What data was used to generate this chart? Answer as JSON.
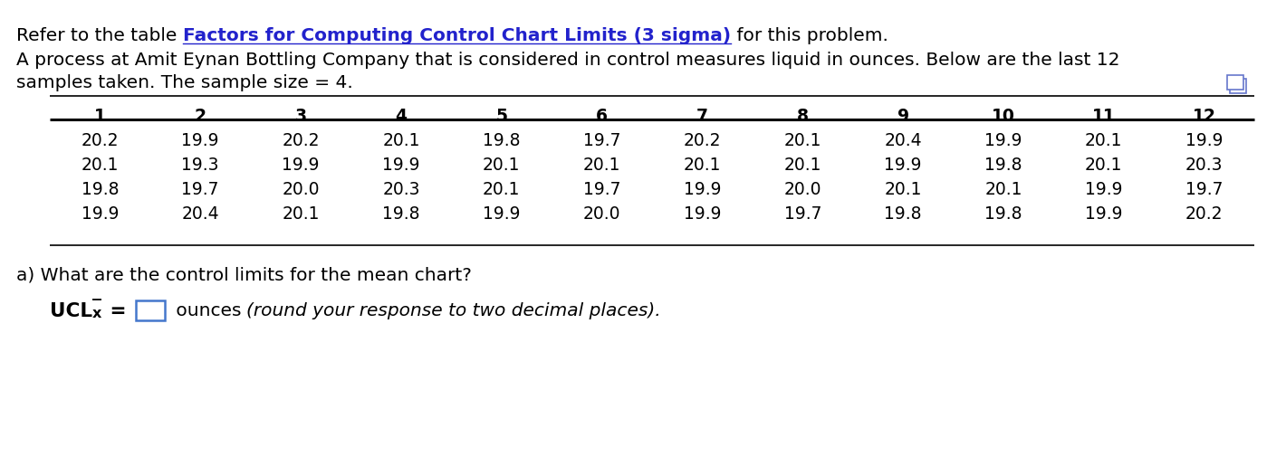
{
  "line1_pre": "Refer to the table ",
  "link_text": "Factors for Computing Control Chart Limits (3 sigma)",
  "line1_post": " for this problem.",
  "line2": "A process at Amit Eynan Bottling Company that is considered in control measures liquid in ounces. Below are the last 12",
  "line3": "samples taken. The sample size = 4.",
  "col_headers": [
    "1",
    "2",
    "3",
    "4",
    "5",
    "6",
    "7",
    "8",
    "9",
    "10",
    "11",
    "12"
  ],
  "table_data": [
    [
      "20.2",
      "19.9",
      "20.2",
      "20.1",
      "19.8",
      "19.7",
      "20.2",
      "20.1",
      "20.4",
      "19.9",
      "20.1",
      "19.9"
    ],
    [
      "20.1",
      "19.3",
      "19.9",
      "19.9",
      "20.1",
      "20.1",
      "20.1",
      "20.1",
      "19.9",
      "19.8",
      "20.1",
      "20.3"
    ],
    [
      "19.8",
      "19.7",
      "20.0",
      "20.3",
      "20.1",
      "19.7",
      "19.9",
      "20.0",
      "20.1",
      "20.1",
      "19.9",
      "19.7"
    ],
    [
      "19.9",
      "20.4",
      "20.1",
      "19.8",
      "19.9",
      "20.0",
      "19.9",
      "19.7",
      "19.8",
      "19.8",
      "19.9",
      "20.2"
    ]
  ],
  "question_a": "a) What are the control limits for the mean chart?",
  "ucl_italic": "(round your response to two decimal places).",
  "bg_color": "#ffffff",
  "text_color": "#000000",
  "link_color": "#2222cc",
  "body_fontsize": 14.5,
  "table_fontsize": 13.5,
  "icon_color": "#6677cc"
}
